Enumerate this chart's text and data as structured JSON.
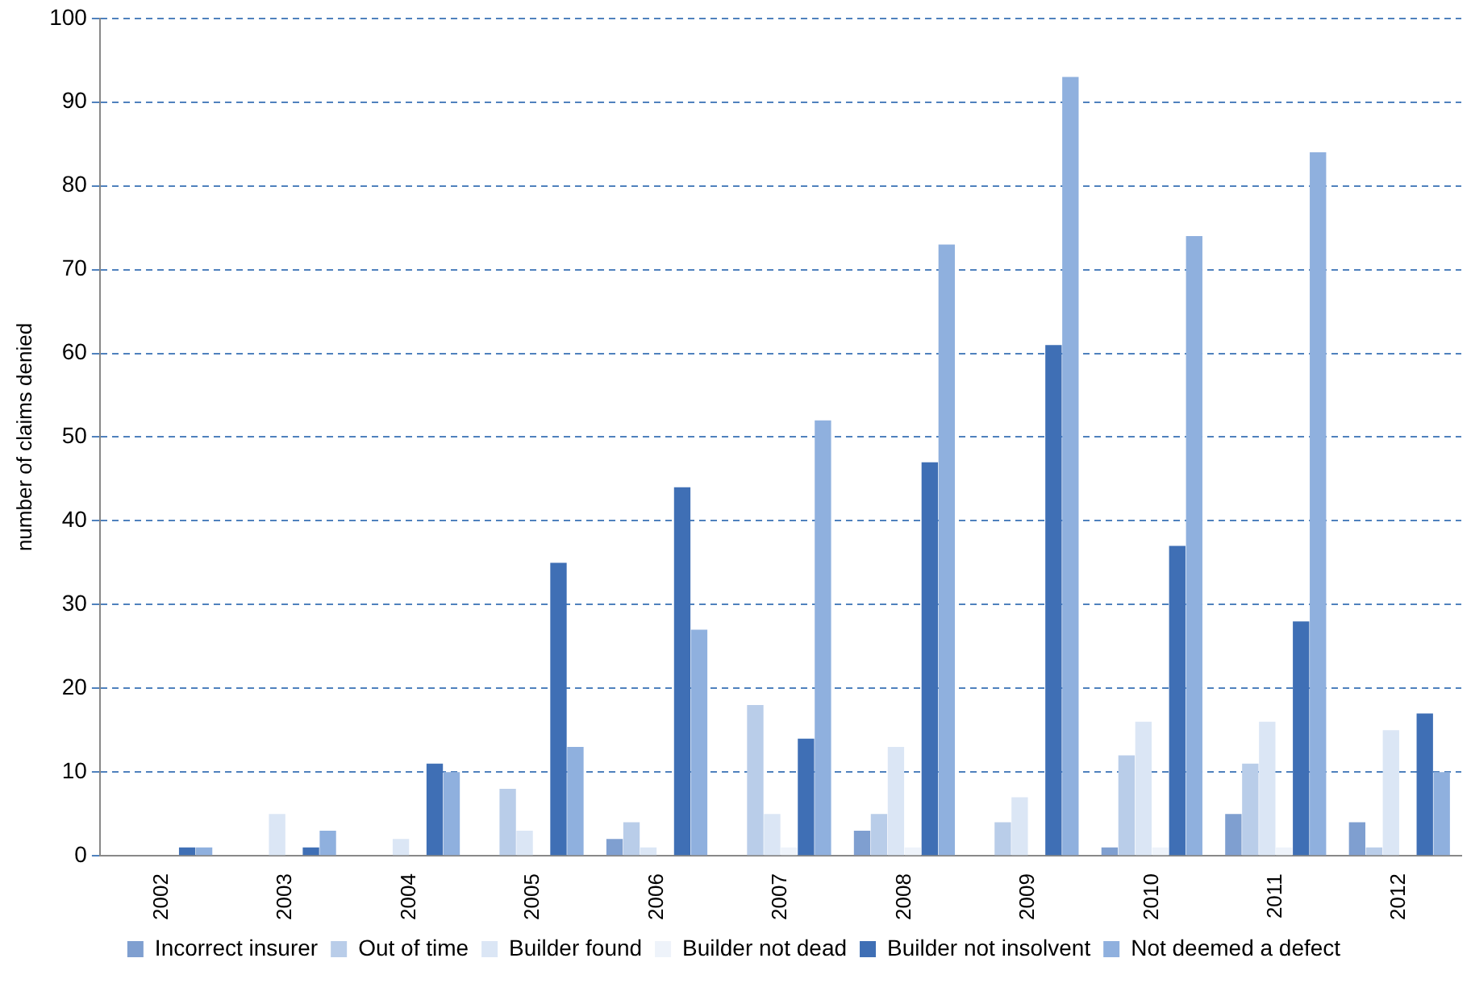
{
  "chart_data": {
    "type": "bar",
    "ylabel": "number of claims denied",
    "categories": [
      "2002",
      "2003",
      "2004",
      "2005",
      "2006",
      "2007",
      "2008",
      "2009",
      "2010",
      "2011",
      "2012"
    ],
    "series": [
      {
        "name": "Incorrect insurer",
        "color": "#7f9fd0",
        "values": [
          0,
          0,
          0,
          0,
          2,
          0,
          3,
          0,
          1,
          5,
          4
        ]
      },
      {
        "name": "Out of time",
        "color": "#b9cde9",
        "values": [
          0,
          0,
          0,
          8,
          4,
          18,
          5,
          4,
          12,
          11,
          1
        ]
      },
      {
        "name": "Builder found",
        "color": "#dbe6f5",
        "values": [
          0,
          5,
          2,
          3,
          1,
          5,
          13,
          7,
          16,
          16,
          15
        ]
      },
      {
        "name": "Builder not dead",
        "color": "#eef3fa",
        "values": [
          0,
          0,
          0,
          0,
          0,
          1,
          1,
          0,
          1,
          1,
          0
        ]
      },
      {
        "name": "Builder not insolvent",
        "color": "#3f6fb5",
        "values": [
          1,
          1,
          11,
          35,
          44,
          14,
          47,
          61,
          37,
          28,
          17
        ]
      },
      {
        "name": "Not deemed a defect",
        "color": "#8fb0de",
        "values": [
          1,
          3,
          10,
          13,
          27,
          52,
          73,
          93,
          74,
          84,
          10
        ]
      }
    ],
    "ylim": [
      0,
      100
    ],
    "yticks": [
      0,
      10,
      20,
      30,
      40,
      50,
      60,
      70,
      80,
      90,
      100
    ],
    "grid": "y",
    "legend": "bottom"
  }
}
